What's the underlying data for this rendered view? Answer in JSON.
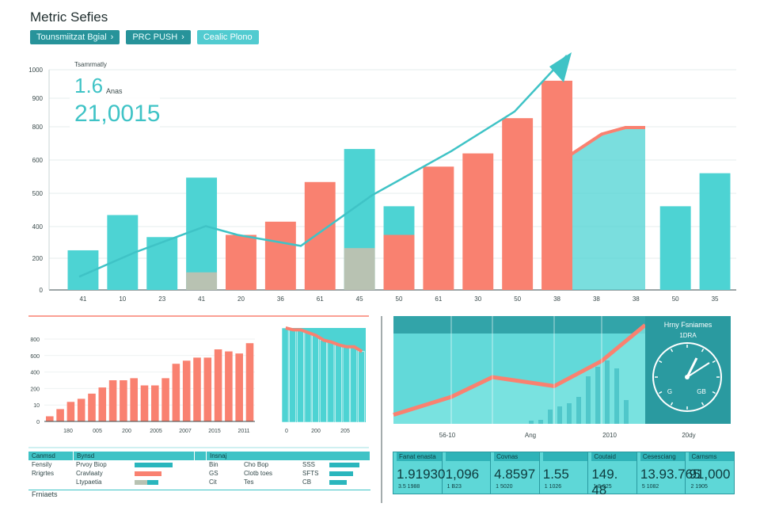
{
  "header": {
    "title": "Metric Sefies",
    "crumbs": [
      "Tounsmiitzat Bgial",
      "PRC PUSH",
      "Cealic Plono"
    ]
  },
  "kpi": {
    "caption": "Tsamrmatly",
    "value": "1.6",
    "unit": "Anas",
    "total": "21,0015"
  },
  "gauge": {
    "title": "Hrny Fsniames",
    "subtitle": "1DRA",
    "left_label": "G",
    "right_label": "GB"
  },
  "bottom_table": {
    "headers": [
      "Canmsd",
      "Bynsd",
      "",
      "Insnaj"
    ],
    "rows": [
      [
        "Fensily",
        "Prvoy Biop",
        "",
        "Bin",
        "Cho Bop",
        "SSS"
      ],
      [
        "Rrigrtes",
        "Cravlaaty",
        "",
        "GS",
        "Clotb toes",
        "SFTS"
      ],
      [
        "",
        "Ltypaetia",
        "",
        "Cit",
        "Tes",
        "CB"
      ]
    ],
    "footer": "Frniaets"
  },
  "stats_row": [
    {
      "label": "Fanat enasta",
      "value": "1.91930",
      "sub": "3.5 1988"
    },
    {
      "label": "",
      "value": "1,096",
      "sub": "1 B23"
    },
    {
      "label": "Covnas",
      "value": "4.8597",
      "sub": "1 5020"
    },
    {
      "label": "",
      "value": "1.55",
      "sub": "1 1026"
    },
    {
      "label": "Coutaid",
      "value": "149. 48",
      "sub": "1 8.025"
    },
    {
      "label": "Cesesciang",
      "value": "13.93.765",
      "sub": "5 1082"
    },
    {
      "label": "Carnsms",
      "value": "91,000",
      "sub": "2 1905"
    }
  ],
  "colors": {
    "teal": "#4dd3d3",
    "dark_teal": "#2a9aa0",
    "coral": "#f98170",
    "gray": "#b8c2b2"
  },
  "chart_data": [
    {
      "type": "bar",
      "title": "",
      "ytick_labels": [
        "0",
        "200",
        "400",
        "500",
        "600",
        "800",
        "900",
        "1000"
      ],
      "xtick_labels": [
        "41",
        "10",
        "23",
        "41",
        "20",
        "36",
        "61",
        "45",
        "50",
        "61",
        "30",
        "50",
        "38",
        "38",
        "38",
        "50",
        "35"
      ],
      "ylim": [
        0,
        1000
      ],
      "series": [
        {
          "color": "teal",
          "values": [
            180,
            340,
            240,
            510,
            0,
            0,
            0,
            640,
            380,
            0,
            0,
            0,
            0,
            0,
            0,
            380,
            530
          ]
        },
        {
          "color": "coral",
          "values": [
            0,
            0,
            0,
            0,
            250,
            310,
            490,
            0,
            0,
            560,
            620,
            780,
            950,
            0,
            0,
            0,
            0
          ]
        }
      ],
      "stacked_segments": [
        {
          "index": 3,
          "bottom_color": "gray",
          "bottom_value": 80
        },
        {
          "index": 7,
          "bottom_color": "gray",
          "bottom_value": 190
        },
        {
          "index": 8,
          "bottom_color": "coral",
          "bottom_value": 250
        }
      ],
      "trend_line": [
        60,
        170,
        290,
        250,
        200,
        430,
        630,
        810,
        1100
      ],
      "area_series": {
        "values": [
          600,
          700,
          730,
          730
        ],
        "color": "teal"
      },
      "grid": true
    },
    {
      "type": "bar",
      "ytick_labels": [
        "0",
        "10",
        "200",
        "400",
        "600",
        "800"
      ],
      "xtick_labels": [
        "180",
        "005",
        "200",
        "2005",
        "2007",
        "2015",
        "2011"
      ],
      "ylim": [
        0,
        800
      ],
      "values": [
        50,
        120,
        190,
        220,
        270,
        330,
        400,
        400,
        420,
        350,
        350,
        420,
        560,
        590,
        620,
        620,
        700,
        680,
        660,
        760
      ],
      "grid": true
    },
    {
      "type": "bar",
      "xtick_labels": [
        "0",
        "200",
        "205"
      ],
      "values": [
        100,
        98,
        98,
        95,
        92,
        87,
        85,
        82,
        80,
        80,
        75
      ]
    },
    {
      "type": "area",
      "xtick_labels": [
        "56-10",
        "Ang",
        "2010",
        "20dy"
      ],
      "values": [
        50,
        150,
        260,
        210,
        350,
        550
      ],
      "bars": [
        4,
        5,
        18,
        22,
        26,
        34,
        60,
        72,
        80,
        70,
        30
      ]
    }
  ]
}
